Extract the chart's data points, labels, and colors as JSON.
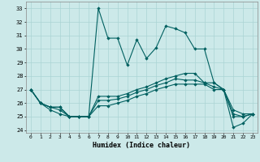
{
  "xlabel": "Humidex (Indice chaleur)",
  "xlim": [
    -0.5,
    23.5
  ],
  "ylim": [
    23.8,
    33.5
  ],
  "yticks": [
    24,
    25,
    26,
    27,
    28,
    29,
    30,
    31,
    32,
    33
  ],
  "xticks": [
    0,
    1,
    2,
    3,
    4,
    5,
    6,
    7,
    8,
    9,
    10,
    11,
    12,
    13,
    14,
    15,
    16,
    17,
    18,
    19,
    20,
    21,
    22,
    23
  ],
  "background_color": "#cce9e9",
  "grid_color": "#aad4d4",
  "line_color": "#006060",
  "series_main": [
    27.0,
    26.0,
    25.7,
    25.7,
    25.0,
    25.0,
    25.0,
    33.0,
    30.8,
    30.8,
    28.8,
    30.7,
    29.3,
    30.1,
    31.7,
    31.5,
    31.2,
    30.0,
    30.0,
    27.5,
    27.0,
    24.2,
    24.5,
    25.2
  ],
  "series_2": [
    27.0,
    26.0,
    25.7,
    25.7,
    25.0,
    25.0,
    25.0,
    26.5,
    26.5,
    26.5,
    26.7,
    27.0,
    27.2,
    27.5,
    27.8,
    28.0,
    28.2,
    28.2,
    27.5,
    27.5,
    27.0,
    25.5,
    25.2,
    25.2
  ],
  "series_3": [
    27.0,
    26.0,
    25.7,
    25.5,
    25.0,
    25.0,
    25.0,
    26.2,
    26.2,
    26.3,
    26.5,
    26.8,
    27.0,
    27.3,
    27.5,
    27.8,
    27.7,
    27.7,
    27.5,
    27.2,
    27.0,
    25.2,
    25.0,
    25.2
  ],
  "series_4": [
    27.0,
    26.0,
    25.5,
    25.2,
    25.0,
    25.0,
    25.0,
    25.8,
    25.8,
    26.0,
    26.2,
    26.5,
    26.7,
    27.0,
    27.2,
    27.4,
    27.4,
    27.4,
    27.4,
    27.0,
    27.0,
    25.0,
    25.0,
    25.2
  ]
}
